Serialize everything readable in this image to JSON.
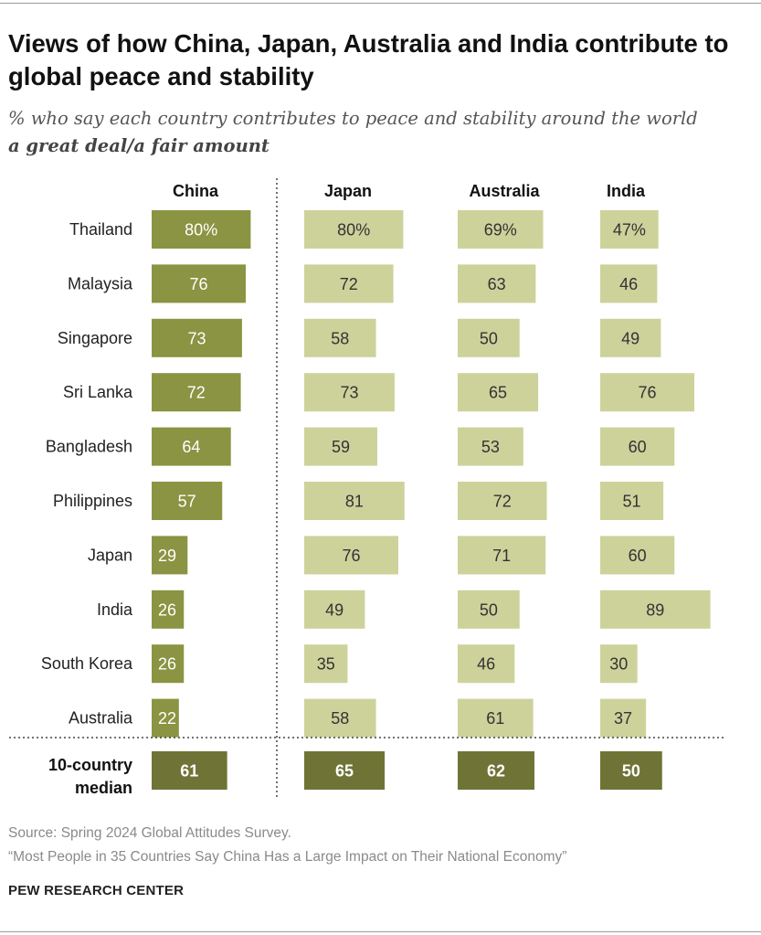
{
  "title": "Views of how China, Japan, Australia and India contribute to global peace and stability",
  "subtitle_line1": "% who say each country contributes to peace and stability around the world",
  "subtitle_line2": "a great deal/a fair amount",
  "source": "Source: Spring 2024 Global Attitudes Survey.",
  "report": "“Most People in 35 Countries Say China Has a Large Impact on Their National Economy”",
  "brand": "PEW RESEARCH CENTER",
  "colors": {
    "china_bar": "#8a9442",
    "other_bar": "#cdd29b",
    "median_bar": "#6f7436",
    "label_dark": "#333333",
    "label_light": "#ffffff"
  },
  "chart_data": {
    "type": "bar",
    "orientation": "horizontal",
    "xlim": [
      0,
      100
    ],
    "categories": [
      "Thailand",
      "Malaysia",
      "Singapore",
      "Sri Lanka",
      "Bangladesh",
      "Philippines",
      "Japan",
      "India",
      "South Korea",
      "Australia"
    ],
    "first_row_labels": [
      "80%",
      "80%",
      "69%",
      "47%"
    ],
    "series": [
      {
        "name": "China",
        "values": [
          80,
          76,
          73,
          72,
          64,
          57,
          29,
          26,
          26,
          22
        ],
        "median": 61
      },
      {
        "name": "Japan",
        "values": [
          80,
          72,
          58,
          73,
          59,
          81,
          76,
          49,
          35,
          58
        ],
        "median": 65
      },
      {
        "name": "Australia",
        "values": [
          69,
          63,
          50,
          65,
          53,
          72,
          71,
          50,
          46,
          61
        ],
        "median": 62
      },
      {
        "name": "India",
        "values": [
          47,
          46,
          49,
          76,
          60,
          51,
          60,
          89,
          30,
          37
        ],
        "median": 50
      }
    ],
    "median_label_line1": "10-country",
    "median_label_line2": "median"
  }
}
